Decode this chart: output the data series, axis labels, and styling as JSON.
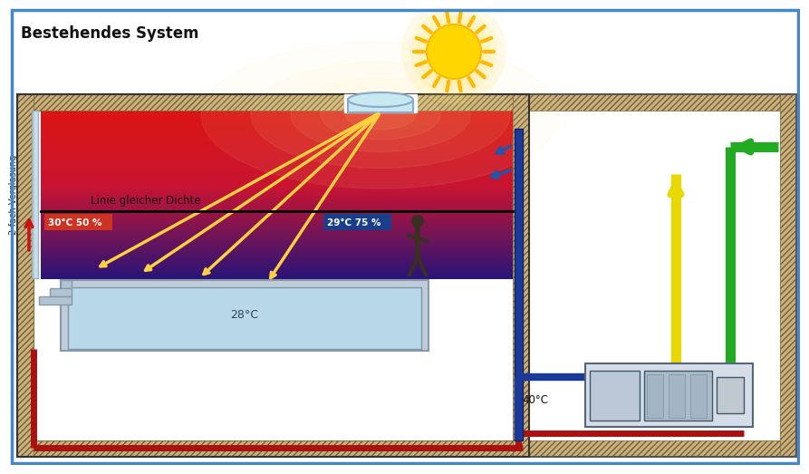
{
  "title": "Bestehendes System",
  "bg_color": "#ffffff",
  "label_verglasung": "2-fach Verglasung",
  "label_dichte": "Linie gleicher Dichte",
  "label_temp_left": "30°C 50 %",
  "label_temp_right": "29°C 75 %",
  "label_pool_temp": "28°C",
  "label_40c": "40°C",
  "sun_color": "#FFD700",
  "sun_ray_color": "#FFB800",
  "sky_light_color": "#c8e8f0",
  "pool_water_color": "#b8d8ea",
  "temp_left_bg": "#cc3322",
  "temp_right_bg": "#1a3e8a",
  "pipe_red": "#aa1111",
  "pipe_blue": "#1a3a99",
  "pipe_yellow": "#e8d800",
  "pipe_green": "#22aa22",
  "wall_fill": "#c8b080",
  "wall_hatch_ec": "#7a6030",
  "room_red_top": "#cc2020",
  "room_blue_bot": "#3a2a7a",
  "border_blue": "#4488cc"
}
